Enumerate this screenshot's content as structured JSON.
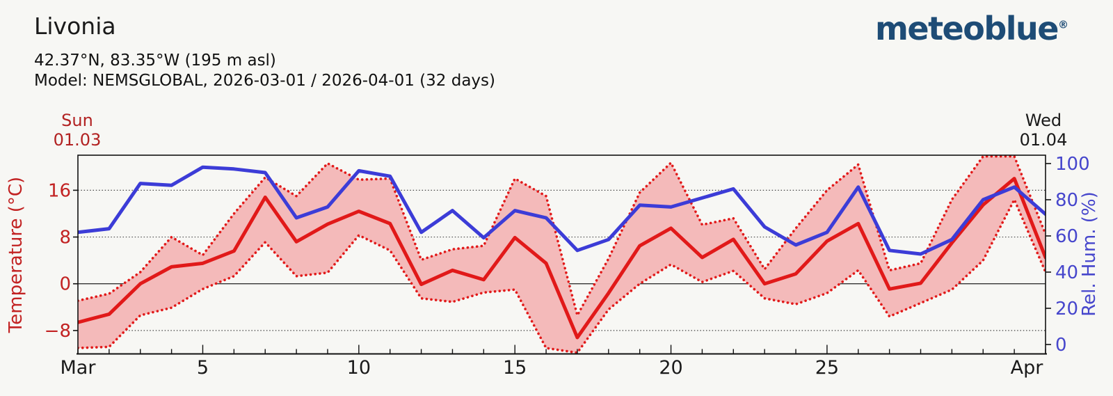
{
  "header": {
    "title": "Livonia",
    "coordinates": "42.37°N, 83.35°W (195 m asl)",
    "model_line": "Model: NEMSGLOBAL, 2026-03-01 / 2026-04-01 (32 days)"
  },
  "logo": {
    "text": "meteoblue",
    "registered_mark": "®"
  },
  "annotations": {
    "start_day": "Sun",
    "start_date": "01.03",
    "end_day": "Wed",
    "end_date": "01.04"
  },
  "colors": {
    "temperature_line": "#e11919",
    "temperature_band": "#f4baba",
    "temperature_axis_text": "#c22222",
    "humidity_line": "#3c3cd7",
    "humidity_axis_text": "#4646cc",
    "annotation_start": "#b22222",
    "annotation_end": "#1a1a1a",
    "logo_blue": "#1e4c76"
  },
  "chart_data": {
    "type": "line",
    "title": "Livonia",
    "x_days": [
      1,
      2,
      3,
      4,
      5,
      6,
      7,
      8,
      9,
      10,
      11,
      12,
      13,
      14,
      15,
      16,
      17,
      18,
      19,
      20,
      21,
      22,
      23,
      24,
      25,
      26,
      27,
      28,
      29,
      30,
      31,
      32
    ],
    "x_axis": {
      "tick_labels": [
        {
          "label": "Mar",
          "day": 1
        },
        {
          "label": "5",
          "day": 5
        },
        {
          "label": "10",
          "day": 10
        },
        {
          "label": "15",
          "day": 15
        },
        {
          "label": "20",
          "day": 20
        },
        {
          "label": "25",
          "day": 25
        },
        {
          "label": "Apr",
          "day": 32
        }
      ]
    },
    "y_left": {
      "label": "Temperature (°C)",
      "ticks": [
        16,
        8,
        0,
        -8
      ],
      "range": [
        -12,
        22
      ],
      "zero_line": 0,
      "gridlines": [
        16,
        8,
        -8
      ]
    },
    "y_right": {
      "label": "Rel. Hum. (%)",
      "ticks": [
        0,
        20,
        40,
        60,
        80,
        100
      ]
    },
    "band": {
      "upper": "temperature_max",
      "lower": "temperature_min",
      "fill": "#f4baba"
    },
    "series": [
      {
        "name": "temperature_mean",
        "axis": "left",
        "color": "#e11919",
        "line": "solid",
        "values": [
          -6.6,
          -5.2,
          0.0,
          2.9,
          3.5,
          5.6,
          14.8,
          7.2,
          10.2,
          12.4,
          10.3,
          -0.1,
          2.3,
          0.7,
          7.9,
          3.5,
          -9.2,
          -1.6,
          6.5,
          9.5,
          4.5,
          7.6,
          0.0,
          1.7,
          7.3,
          10.3,
          -0.9,
          0.1,
          7.0,
          13.5,
          18.0,
          4.5
        ]
      },
      {
        "name": "temperature_max",
        "axis": "left",
        "color": "#e11919",
        "line": "dotted",
        "values": [
          -2.9,
          -1.7,
          2.0,
          8.0,
          4.9,
          12.0,
          18.2,
          15.0,
          20.6,
          17.8,
          18.0,
          4.1,
          5.9,
          6.5,
          18.0,
          15.0,
          -5.4,
          4.3,
          15.6,
          20.7,
          10.1,
          11.2,
          2.5,
          9.5,
          16.0,
          20.4,
          2.3,
          3.5,
          14.4,
          21.8,
          21.8,
          8.5
        ]
      },
      {
        "name": "temperature_min",
        "axis": "left",
        "color": "#e11919",
        "line": "dotted",
        "values": [
          -11.0,
          -10.8,
          -5.4,
          -4.1,
          -0.9,
          1.3,
          7.1,
          1.3,
          1.9,
          8.3,
          5.7,
          -2.5,
          -3.1,
          -1.5,
          -1.0,
          -11.0,
          -11.8,
          -4.4,
          0.0,
          3.3,
          0.3,
          2.2,
          -2.5,
          -3.5,
          -1.6,
          2.3,
          -5.6,
          -3.3,
          -1.0,
          4.0,
          14.4,
          2.0
        ]
      },
      {
        "name": "relative_humidity",
        "axis": "right",
        "color": "#3c3cd7",
        "line": "solid",
        "values": [
          62,
          64,
          89,
          88,
          98,
          97,
          95,
          70,
          76,
          96,
          93,
          62,
          74,
          59,
          74,
          70,
          52,
          58,
          77,
          76,
          81,
          86,
          65,
          55,
          62,
          87,
          52,
          50,
          58,
          80,
          87,
          72
        ]
      }
    ]
  }
}
